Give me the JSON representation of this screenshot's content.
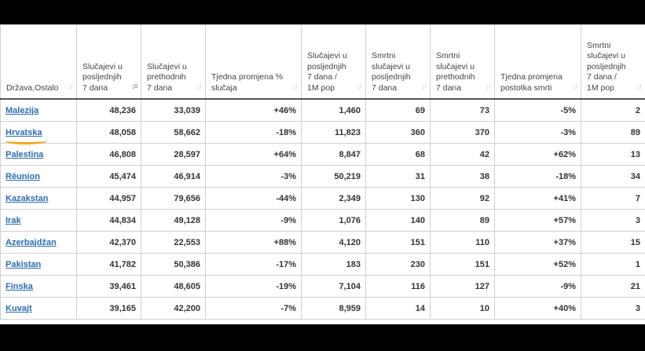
{
  "headers": [
    {
      "label": "Država,Ostalo"
    },
    {
      "label": "Slučajevi u posljednjih 7 dana"
    },
    {
      "label": "Slučajevi u prethodnih 7 dana"
    },
    {
      "label": "Tjedna promjena % slučaja"
    },
    {
      "label": "Slučajevi u posljednjih 7 dana / 1M pop"
    },
    {
      "label": "Smrtni slučajevi u posljednjih 7 dana"
    },
    {
      "label": "Smrtni slučajevi u prethodnih 7 dana"
    },
    {
      "label": "Tjedna promjena postotka smrti"
    },
    {
      "label": "Smrtni slučajevi u posljednjih 7 dana / 1M pop"
    }
  ],
  "rows": [
    {
      "country": "Malezija",
      "c7": "48,236",
      "cprev": "33,039",
      "cchg": "+46%",
      "c1m": "1,460",
      "d7": "69",
      "dprev": "73",
      "dchg": "-5%",
      "d1m": "2"
    },
    {
      "country": "Hrvatska",
      "c7": "48,058",
      "cprev": "58,662",
      "cchg": "-18%",
      "c1m": "11,823",
      "d7": "360",
      "dprev": "370",
      "dchg": "-3%",
      "d1m": "89"
    },
    {
      "country": "Palestina",
      "c7": "46,808",
      "cprev": "28,597",
      "cchg": "+64%",
      "c1m": "8,847",
      "d7": "68",
      "dprev": "42",
      "dchg": "+62%",
      "d1m": "13"
    },
    {
      "country": "Réunion",
      "c7": "45,474",
      "cprev": "46,914",
      "cchg": "-3%",
      "c1m": "50,219",
      "d7": "31",
      "dprev": "38",
      "dchg": "-18%",
      "d1m": "34"
    },
    {
      "country": "Kazakstan",
      "c7": "44,957",
      "cprev": "79,656",
      "cchg": "-44%",
      "c1m": "2,349",
      "d7": "130",
      "dprev": "92",
      "dchg": "+41%",
      "d1m": "7"
    },
    {
      "country": "Irak",
      "c7": "44,834",
      "cprev": "49,128",
      "cchg": "-9%",
      "c1m": "1,076",
      "d7": "140",
      "dprev": "89",
      "dchg": "+57%",
      "d1m": "3"
    },
    {
      "country": "Azerbajdžan",
      "c7": "42,370",
      "cprev": "22,553",
      "cchg": "+88%",
      "c1m": "4,120",
      "d7": "151",
      "dprev": "110",
      "dchg": "+37%",
      "d1m": "15"
    },
    {
      "country": "Pakistan",
      "c7": "41,782",
      "cprev": "50,386",
      "cchg": "-17%",
      "c1m": "183",
      "d7": "230",
      "dprev": "151",
      "dchg": "+52%",
      "d1m": "1"
    },
    {
      "country": "Finska",
      "c7": "39,461",
      "cprev": "48,605",
      "cchg": "-19%",
      "c1m": "7,104",
      "d7": "116",
      "dprev": "127",
      "dchg": "-9%",
      "d1m": "21"
    },
    {
      "country": "Kuvajt",
      "c7": "39,165",
      "cprev": "42,200",
      "cchg": "-7%",
      "c1m": "8,959",
      "d7": "14",
      "dprev": "10",
      "dchg": "+40%",
      "d1m": "3"
    }
  ]
}
